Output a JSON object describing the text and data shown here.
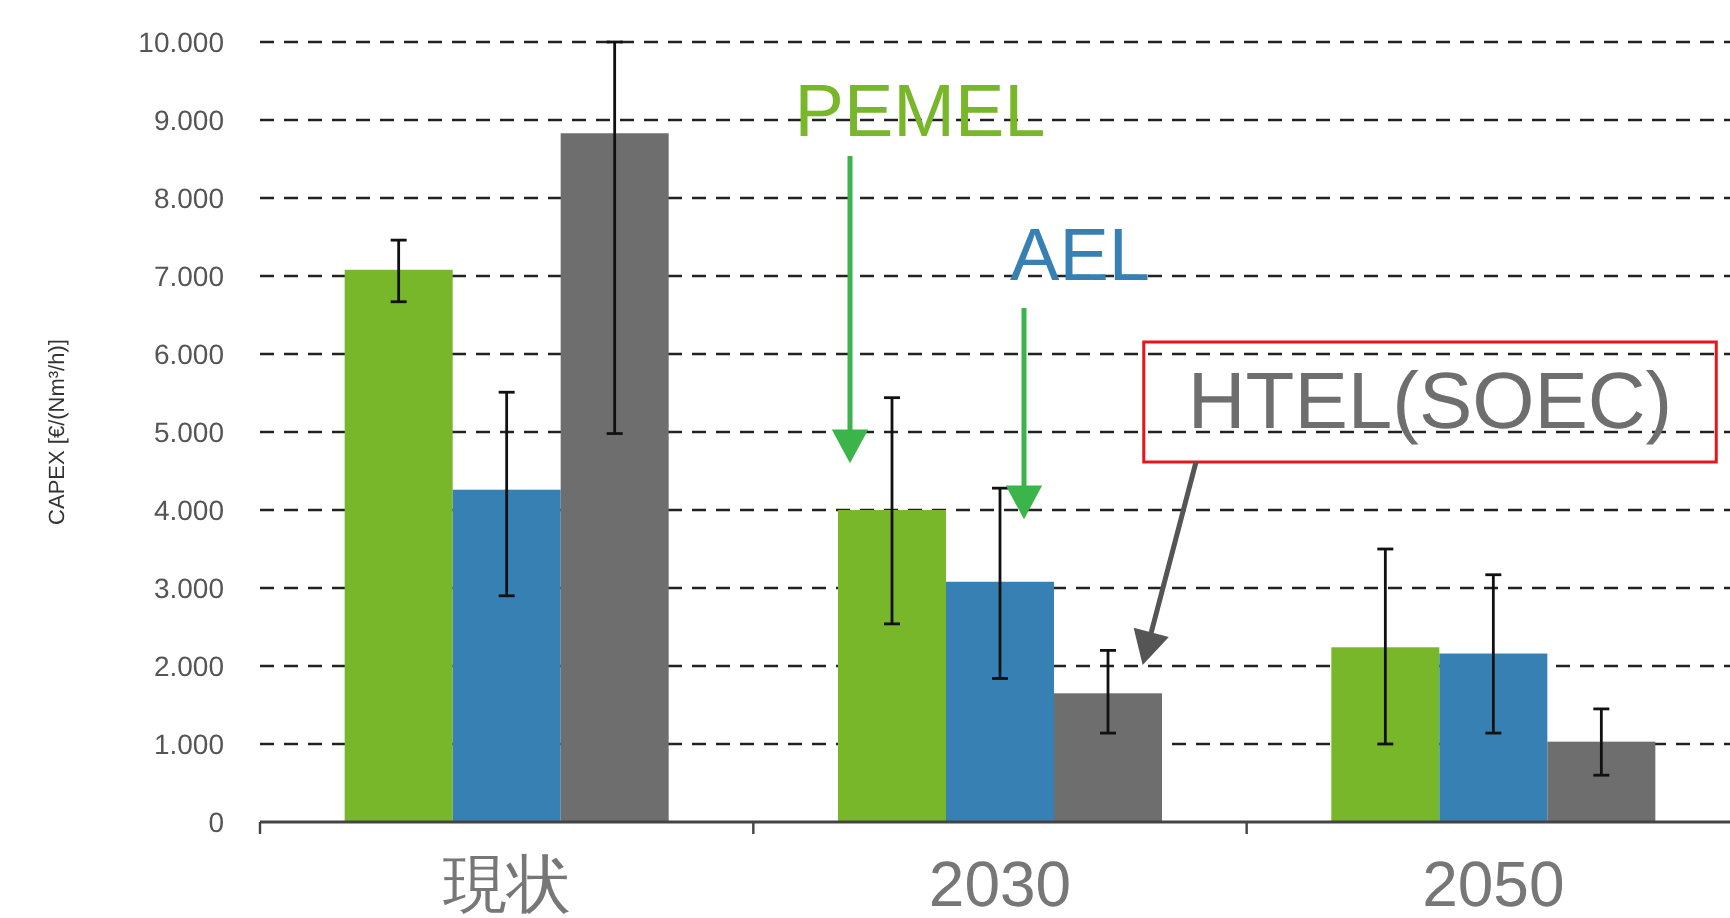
{
  "chart_data": {
    "type": "bar",
    "categories": [
      "現状",
      "2030",
      "2050"
    ],
    "ylabel": "CAPEX [€/(Nm³/h)]",
    "ylim": [
      0,
      10000
    ],
    "yticks": [
      0,
      {
        "value": 1000,
        "label": "1.000"
      },
      {
        "value": 2000,
        "label": "2.000"
      },
      {
        "value": 3000,
        "label": "3.000"
      },
      {
        "value": 4000,
        "label": "4.000"
      },
      {
        "value": 5000,
        "label": "5.000"
      },
      {
        "value": 6000,
        "label": "6.000"
      },
      {
        "value": 7000,
        "label": "7.000"
      },
      {
        "value": 8000,
        "label": "8.000"
      },
      {
        "value": 9000,
        "label": "9.000"
      },
      {
        "value": 10000,
        "label": "10.000"
      }
    ],
    "grid": "y",
    "series": [
      {
        "name": "PEMEL",
        "color": "#78b72a",
        "values": [
          7080,
          4000,
          2240
        ],
        "errors": [
          [
            6670,
            7460
          ],
          [
            2540,
            5440
          ],
          [
            1000,
            3500
          ]
        ]
      },
      {
        "name": "AEL",
        "color": "#3780b3",
        "values": [
          4260,
          3080,
          2160
        ],
        "errors": [
          [
            2900,
            5510
          ],
          [
            1840,
            4280
          ],
          [
            1140,
            3170
          ]
        ]
      },
      {
        "name": "HTEL(SOEC)",
        "color": "#6d6e6d",
        "values": [
          8830,
          1650,
          1030
        ],
        "errors": [
          [
            4980,
            10000
          ],
          [
            1140,
            2200
          ],
          [
            600,
            1450
          ]
        ]
      }
    ]
  }
}
